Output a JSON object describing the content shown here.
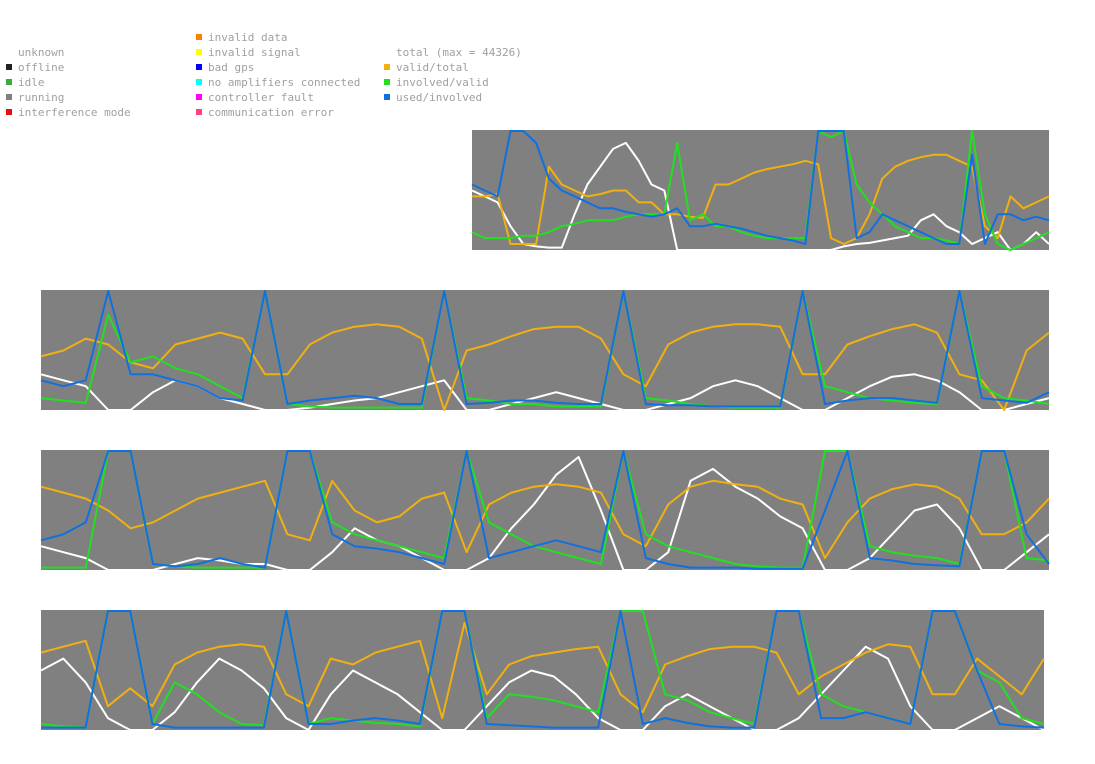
{
  "legend": {
    "status": [
      {
        "label": "unknown",
        "color": null
      },
      {
        "label": "offline",
        "color": "#222222"
      },
      {
        "label": "idle",
        "color": "#3fa83f"
      },
      {
        "label": "running",
        "color": "#808080"
      },
      {
        "label": "interference mode",
        "color": "#e01010"
      }
    ],
    "errors": [
      {
        "label": "invalid data",
        "color": "#ff7f00"
      },
      {
        "label": "invalid signal",
        "color": "#ffff00"
      },
      {
        "label": "bad gps",
        "color": "#0000ff"
      },
      {
        "label": "no amplifiers connected",
        "color": "#00ffff"
      },
      {
        "label": "controller fault",
        "color": "#ff00ff"
      },
      {
        "label": "communication error",
        "color": "#ff3f7f"
      }
    ],
    "ratios": [
      {
        "label": "total (max = 44326)",
        "color": null
      },
      {
        "label": "valid/total",
        "color": "#f0b010"
      },
      {
        "label": "involved/valid",
        "color": "#20e020"
      },
      {
        "label": "used/involved",
        "color": "#1070e0"
      }
    ]
  },
  "colors": {
    "background": "#808080",
    "total": "#ffffff",
    "valid_total": "#f0b010",
    "involved_valid": "#20e020",
    "used_involved": "#1070e0"
  },
  "chart_data": [
    {
      "type": "line",
      "panel": 1,
      "status": "running",
      "series": [
        {
          "name": "total (max = 44326)",
          "values": [
            0.5,
            0.45,
            0.4,
            0.2,
            0.05,
            0.03,
            0.02,
            0.02,
            0.3,
            0.55,
            0.7,
            0.85,
            0.9,
            0.75,
            0.55,
            0.5,
            0.0,
            0.0,
            0.0,
            0.0,
            0.0,
            0.0,
            0.0,
            0.0,
            0.0,
            0.0,
            0.0,
            0.0,
            0.0,
            0.03,
            0.05,
            0.06,
            0.08,
            0.1,
            0.12,
            0.25,
            0.3,
            0.2,
            0.15,
            0.05,
            0.1,
            0.15,
            0.0,
            0.05,
            0.15,
            0.05
          ]
        },
        {
          "name": "valid/total",
          "values": [
            0.45,
            0.45,
            0.47,
            0.05,
            0.05,
            0.05,
            0.7,
            0.55,
            0.5,
            0.45,
            0.47,
            0.5,
            0.5,
            0.4,
            0.4,
            0.3,
            0.3,
            0.28,
            0.27,
            0.55,
            0.55,
            0.6,
            0.65,
            0.68,
            0.7,
            0.72,
            0.75,
            0.72,
            0.1,
            0.05,
            0.1,
            0.3,
            0.6,
            0.7,
            0.75,
            0.78,
            0.8,
            0.8,
            0.75,
            0.7,
            0.2,
            0.1,
            0.45,
            0.35,
            0.4,
            0.45
          ]
        },
        {
          "name": "involved/valid",
          "values": [
            0.15,
            0.1,
            0.1,
            0.1,
            0.12,
            0.12,
            0.15,
            0.2,
            0.22,
            0.25,
            0.25,
            0.25,
            0.28,
            0.3,
            0.3,
            0.3,
            0.9,
            0.25,
            0.3,
            0.2,
            0.2,
            0.15,
            0.12,
            0.1,
            0.1,
            0.1,
            0.1,
            1.0,
            0.95,
            1.0,
            0.55,
            0.4,
            0.3,
            0.2,
            0.15,
            0.1,
            0.1,
            0.08,
            0.05,
            1.0,
            0.3,
            0.05,
            0.0,
            0.05,
            0.1,
            0.15
          ]
        },
        {
          "name": "used/involved",
          "values": [
            0.55,
            0.5,
            0.45,
            1.0,
            1.0,
            0.9,
            0.6,
            0.5,
            0.45,
            0.4,
            0.35,
            0.35,
            0.32,
            0.3,
            0.28,
            0.3,
            0.35,
            0.2,
            0.2,
            0.22,
            0.2,
            0.18,
            0.15,
            0.12,
            0.1,
            0.08,
            0.05,
            1.0,
            1.0,
            1.0,
            0.1,
            0.15,
            0.3,
            0.25,
            0.2,
            0.15,
            0.1,
            0.05,
            0.05,
            0.8,
            0.05,
            0.3,
            0.3,
            0.25,
            0.28,
            0.25
          ]
        }
      ]
    },
    {
      "type": "line",
      "panel": 2,
      "status": "running",
      "series": [
        {
          "name": "total (max = 44326)",
          "values": [
            0.3,
            0.25,
            0.2,
            0.0,
            0.0,
            0.15,
            0.25,
            0.2,
            0.1,
            0.05,
            0.0,
            0.0,
            0.02,
            0.05,
            0.08,
            0.1,
            0.15,
            0.2,
            0.25,
            0.0,
            0.0,
            0.05,
            0.1,
            0.15,
            0.1,
            0.05,
            0.0,
            0.0,
            0.05,
            0.1,
            0.2,
            0.25,
            0.2,
            0.1,
            0.0,
            0.0,
            0.1,
            0.2,
            0.28,
            0.3,
            0.25,
            0.15,
            0.0,
            0.0,
            0.05,
            0.1
          ]
        },
        {
          "name": "valid/total",
          "values": [
            0.45,
            0.5,
            0.6,
            0.55,
            0.4,
            0.35,
            0.55,
            0.6,
            0.65,
            0.6,
            0.3,
            0.3,
            0.55,
            0.65,
            0.7,
            0.72,
            0.7,
            0.6,
            0.0,
            0.5,
            0.55,
            0.62,
            0.68,
            0.7,
            0.7,
            0.6,
            0.3,
            0.2,
            0.55,
            0.65,
            0.7,
            0.72,
            0.72,
            0.7,
            0.3,
            0.3,
            0.55,
            0.62,
            0.68,
            0.72,
            0.65,
            0.3,
            0.25,
            0.0,
            0.5,
            0.65
          ]
        },
        {
          "name": "involved/valid",
          "values": [
            0.1,
            0.08,
            0.06,
            0.8,
            0.4,
            0.45,
            0.35,
            0.3,
            0.2,
            0.1,
            1.0,
            0.05,
            0.03,
            0.02,
            0.02,
            0.02,
            0.02,
            0.02,
            1.0,
            0.1,
            0.08,
            0.05,
            0.05,
            0.03,
            0.03,
            0.03,
            1.0,
            0.1,
            0.08,
            0.05,
            0.03,
            0.02,
            0.02,
            0.02,
            1.0,
            0.2,
            0.15,
            0.1,
            0.08,
            0.06,
            0.05,
            1.0,
            0.2,
            0.1,
            0.08,
            0.05
          ]
        },
        {
          "name": "used/involved",
          "values": [
            0.25,
            0.2,
            0.25,
            1.0,
            0.3,
            0.3,
            0.25,
            0.2,
            0.1,
            0.08,
            1.0,
            0.05,
            0.08,
            0.1,
            0.12,
            0.1,
            0.05,
            0.05,
            1.0,
            0.05,
            0.06,
            0.08,
            0.08,
            0.06,
            0.05,
            0.05,
            1.0,
            0.05,
            0.04,
            0.04,
            0.03,
            0.03,
            0.03,
            0.03,
            1.0,
            0.05,
            0.08,
            0.1,
            0.1,
            0.08,
            0.06,
            1.0,
            0.1,
            0.08,
            0.06,
            0.15
          ]
        }
      ]
    },
    {
      "type": "line",
      "panel": 3,
      "status": "running",
      "series": [
        {
          "name": "total (max = 44326)",
          "values": [
            0.2,
            0.15,
            0.1,
            0.0,
            0.0,
            0.0,
            0.05,
            0.1,
            0.08,
            0.05,
            0.05,
            0.0,
            0.0,
            0.15,
            0.35,
            0.25,
            0.2,
            0.1,
            0.0,
            0.0,
            0.1,
            0.35,
            0.55,
            0.8,
            0.95,
            0.5,
            0.0,
            0.0,
            0.15,
            0.75,
            0.85,
            0.7,
            0.6,
            0.45,
            0.35,
            0.0,
            0.0,
            0.1,
            0.3,
            0.5,
            0.55,
            0.35,
            0.0,
            0.0,
            0.15,
            0.3
          ]
        },
        {
          "name": "valid/total",
          "values": [
            0.7,
            0.65,
            0.6,
            0.5,
            0.35,
            0.4,
            0.5,
            0.6,
            0.65,
            0.7,
            0.75,
            0.3,
            0.25,
            0.75,
            0.5,
            0.4,
            0.45,
            0.6,
            0.65,
            0.15,
            0.55,
            0.65,
            0.7,
            0.72,
            0.7,
            0.65,
            0.3,
            0.2,
            0.55,
            0.7,
            0.75,
            0.72,
            0.7,
            0.6,
            0.55,
            0.1,
            0.4,
            0.6,
            0.68,
            0.72,
            0.7,
            0.6,
            0.3,
            0.3,
            0.4,
            0.6
          ]
        },
        {
          "name": "involved/valid",
          "values": [
            0.02,
            0.02,
            0.02,
            1.0,
            1.0,
            0.05,
            0.03,
            0.02,
            0.02,
            0.02,
            0.02,
            1.0,
            1.0,
            0.4,
            0.3,
            0.25,
            0.2,
            0.15,
            0.1,
            1.0,
            0.4,
            0.3,
            0.2,
            0.15,
            0.1,
            0.05,
            1.0,
            0.3,
            0.2,
            0.15,
            0.1,
            0.05,
            0.03,
            0.02,
            0.02,
            1.0,
            1.0,
            0.2,
            0.15,
            0.12,
            0.1,
            0.05,
            1.0,
            1.0,
            0.1,
            0.08
          ]
        },
        {
          "name": "used/involved",
          "values": [
            0.25,
            0.3,
            0.4,
            1.0,
            1.0,
            0.05,
            0.03,
            0.05,
            0.1,
            0.05,
            0.02,
            1.0,
            1.0,
            0.3,
            0.2,
            0.18,
            0.15,
            0.1,
            0.05,
            1.0,
            0.1,
            0.15,
            0.2,
            0.25,
            0.2,
            0.15,
            1.0,
            0.1,
            0.05,
            0.02,
            0.02,
            0.02,
            0.01,
            0.01,
            0.01,
            0.5,
            1.0,
            0.1,
            0.08,
            0.05,
            0.04,
            0.03,
            1.0,
            1.0,
            0.3,
            0.05
          ]
        }
      ]
    },
    {
      "type": "line",
      "panel": 4,
      "status": "running",
      "series": [
        {
          "name": "total (max = 44326)",
          "values": [
            0.5,
            0.6,
            0.4,
            0.1,
            0.0,
            0.0,
            0.15,
            0.4,
            0.6,
            0.5,
            0.35,
            0.1,
            0.0,
            0.3,
            0.5,
            0.4,
            0.3,
            0.15,
            0.0,
            0.0,
            0.2,
            0.4,
            0.5,
            0.45,
            0.3,
            0.1,
            0.0,
            0.0,
            0.2,
            0.3,
            0.2,
            0.1,
            0.0,
            0.0,
            0.1,
            0.3,
            0.5,
            0.7,
            0.6,
            0.2,
            0.0,
            0.0,
            0.1,
            0.2,
            0.1,
            0.0
          ]
        },
        {
          "name": "valid/total",
          "values": [
            0.65,
            0.7,
            0.75,
            0.2,
            0.35,
            0.2,
            0.55,
            0.65,
            0.7,
            0.72,
            0.7,
            0.3,
            0.2,
            0.6,
            0.55,
            0.65,
            0.7,
            0.75,
            0.1,
            0.9,
            0.3,
            0.55,
            0.62,
            0.65,
            0.68,
            0.7,
            0.3,
            0.15,
            0.55,
            0.62,
            0.68,
            0.7,
            0.7,
            0.65,
            0.3,
            0.45,
            0.55,
            0.65,
            0.72,
            0.7,
            0.3,
            0.3,
            0.6,
            0.45,
            0.3,
            0.6
          ]
        },
        {
          "name": "involved/valid",
          "values": [
            0.05,
            0.03,
            0.02,
            1.0,
            1.0,
            0.05,
            0.4,
            0.3,
            0.15,
            0.05,
            0.04,
            1.0,
            0.05,
            0.1,
            0.08,
            0.06,
            0.05,
            0.03,
            1.0,
            1.0,
            0.1,
            0.3,
            0.28,
            0.25,
            0.2,
            0.15,
            1.0,
            1.0,
            0.3,
            0.25,
            0.15,
            0.1,
            0.05,
            1.0,
            1.0,
            0.3,
            0.2,
            0.15,
            0.1,
            0.05,
            1.0,
            1.0,
            0.5,
            0.4,
            0.1,
            0.05
          ]
        },
        {
          "name": "used/involved",
          "values": [
            0.02,
            0.02,
            0.02,
            1.0,
            1.0,
            0.05,
            0.02,
            0.02,
            0.02,
            0.02,
            0.02,
            1.0,
            0.05,
            0.05,
            0.08,
            0.1,
            0.08,
            0.05,
            1.0,
            1.0,
            0.05,
            0.04,
            0.03,
            0.02,
            0.02,
            0.02,
            1.0,
            0.05,
            0.1,
            0.06,
            0.03,
            0.02,
            0.02,
            1.0,
            1.0,
            0.1,
            0.1,
            0.15,
            0.1,
            0.05,
            1.0,
            1.0,
            0.5,
            0.05,
            0.03,
            0.02
          ]
        }
      ]
    }
  ]
}
